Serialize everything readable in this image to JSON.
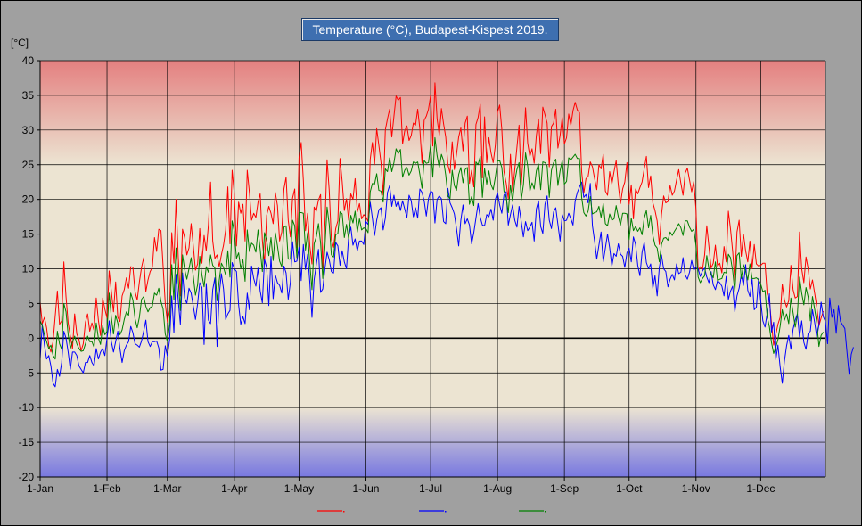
{
  "chart_data": {
    "type": "line",
    "title": "Temperature (°C), Budapest-Kispest 2019.",
    "ylabel": "[°C]",
    "xlabel": "",
    "ylim": [
      -20,
      40
    ],
    "y_ticks": [
      40,
      35,
      30,
      25,
      20,
      15,
      10,
      5,
      0,
      -5,
      -10,
      -15,
      -20
    ],
    "x_ticks": [
      {
        "label": "1-Jan",
        "day": 1
      },
      {
        "label": "1-Feb",
        "day": 32
      },
      {
        "label": "1-Mar",
        "day": 60
      },
      {
        "label": "1-Apr",
        "day": 91
      },
      {
        "label": "1-May",
        "day": 121
      },
      {
        "label": "1-Jun",
        "day": 152
      },
      {
        "label": "1-Jul",
        "day": 182
      },
      {
        "label": "1-Aug",
        "day": 213
      },
      {
        "label": "1-Sep",
        "day": 244
      },
      {
        "label": "1-Oct",
        "day": 274
      },
      {
        "label": "1-Nov",
        "day": 305
      },
      {
        "label": "1-Dec",
        "day": 335
      }
    ],
    "xlim_days": [
      1,
      365
    ],
    "grid": true,
    "background_bands": {
      "hot_above": 25,
      "cold_below": -10,
      "hot_color": "#e48080",
      "cold_color": "#7878e0",
      "neutral_color": "#ece4d2"
    },
    "legend": "bottom",
    "series": [
      {
        "color": "#ff0000",
        "values": [
          5.2,
          2.1,
          3.0,
          1.5,
          -1.0,
          -2.0,
          -0.5,
          3.2,
          6.8,
          2.0,
          2.5,
          11.0,
          6.0,
          2.2,
          0.3,
          -1.5,
          3.5,
          0.6,
          -0.2,
          -1.8,
          -0.8,
          2.3,
          3.5,
          1.0,
          2.2,
          1.1,
          5.8,
          2.6,
          0.4,
          5.8,
          4.2,
          2.9,
          9.7,
          6.8,
          3.8,
          8.1,
          3.0,
          2.4,
          6.1,
          7.0,
          8.7,
          7.2,
          10.3,
          10.2,
          6.7,
          5.5,
          8.1,
          10.2,
          11.6,
          6.7,
          8.4,
          9.6,
          10.2,
          14.5,
          12.5,
          15.7,
          15.5,
          10.4,
          5.0,
          2.3,
          4.0,
          15.2,
          10.8,
          20.0,
          11.8,
          6.1,
          15.7,
          14.5,
          12.0,
          13.0,
          16.5,
          13.3,
          9.8,
          10.7,
          15.8,
          10.8,
          14.8,
          12.6,
          16.3,
          22.5,
          14.0,
          11.5,
          12.0,
          10.3,
          12.0,
          13.4,
          15.6,
          21.8,
          13.6,
          24.2,
          20.8,
          13.3,
          19.6,
          18.0,
          19.3,
          14.0,
          24.2,
          21.0,
          17.0,
          18.0,
          17.4,
          19.6,
          20.8,
          14.1,
          10.7,
          17.7,
          19.0,
          18.0,
          16.5,
          21.0,
          19.1,
          14.0,
          15.3,
          21.5,
          23.2,
          17.0,
          14.6,
          20.2,
          21.5,
          13.0,
          26.0,
          28.2,
          22.8,
          15.5,
          18.0,
          13.3,
          10.7,
          18.9,
          18.3,
          19.9,
          20.7,
          10.0,
          16.4,
          25.7,
          21.3,
          14.2,
          13.1,
          15.8,
          16.9,
          25.9,
          22.6,
          18.4,
          20.1,
          17.0,
          20.8,
          20.0,
          23.0,
          18.2,
          19.4,
          17.2,
          17.8,
          17.5,
          16.8,
          25.8,
          28.2,
          25.0,
          30.2,
          27.8,
          25.3,
          20.6,
          30.0,
          31.6,
          33.0,
          29.0,
          32.0,
          34.9,
          34.3,
          34.7,
          28.0,
          29.9,
          30.6,
          28.5,
          29.2,
          31.0,
          30.7,
          33.0,
          30.2,
          25.2,
          31.4,
          32.0,
          33.0,
          35.0,
          27.7,
          36.8,
          31.6,
          29.3,
          33.1,
          30.9,
          29.0,
          25.0,
          23.8,
          28.3,
          24.3,
          26.5,
          29.0,
          30.3,
          27.0,
          31.0,
          32.0,
          22.3,
          24.2,
          21.8,
          30.8,
          31.8,
          33.7,
          23.1,
          31.9,
          25.3,
          28.9,
          26.7,
          25.3,
          27.8,
          32.6,
          33.6,
          30.1,
          24.0,
          22.4,
          20.1,
          26.5,
          21.2,
          24.3,
          27.5,
          30.7,
          22.0,
          27.0,
          33.2,
          28.1,
          26.2,
          27.3,
          25.2,
          29.2,
          31.6,
          26.6,
          33.3,
          32.2,
          31.0,
          24.7,
          30.5,
          31.0,
          33.0,
          27.4,
          29.2,
          31.8,
          28.0,
          28.9,
          32.3,
          30.7,
          32.8,
          34.0,
          32.9,
          32.5,
          24.0,
          20.9,
          23.0,
          23.3,
          25.4,
          24.7,
          23.0,
          21.4,
          25.0,
          24.4,
          26.5,
          21.2,
          20.6,
          24.0,
          22.2,
          24.0,
          25.6,
          22.0,
          19.4,
          21.5,
          22.5,
          25.3,
          19.3,
          22.1,
          17.2,
          21.5,
          20.8,
          21.7,
          22.5,
          24.4,
          26.2,
          21.7,
          23.4,
          19.5,
          18.4,
          16.9,
          13.5,
          17.8,
          20.5,
          19.5,
          19.7,
          22.0,
          20.6,
          21.2,
          22.8,
          24.3,
          22.3,
          20.6,
          23.8,
          24.5,
          22.8,
          21.1,
          22.6,
          18.5,
          9.7,
          10.3,
          9.9,
          12.0,
          16.2,
          13.2,
          10.1,
          10.8,
          13.4,
          10.4,
          10.8,
          9.4,
          13.2,
          11.0,
          18.3,
          15.7,
          12.5,
          8.2,
          15.3,
          17.0,
          11.8,
          15.0,
          12.6,
          11.0,
          14.0,
          10.0,
          13.5,
          10.7,
          10.4,
          10.5,
          10.8,
          10.8,
          6.4,
          5.5,
          2.2,
          -1.0,
          0.5,
          2.0,
          3.0,
          7.8,
          5.5,
          4.5,
          5.4,
          10.5,
          7.0,
          5.8,
          6.0,
          15.3,
          10.0,
          8.0,
          11.7,
          10.0,
          7.1,
          8.4,
          6.5,
          4.5,
          1.8,
          2.9,
          3.9
        ]
      },
      {
        "color": "#0000ff",
        "values": [
          -3.0,
          2.0,
          -1.0,
          -3.0,
          -2.5,
          -4.0,
          -6.5,
          -7.0,
          -4.5,
          -5.5,
          -3.5,
          1.0,
          0.0,
          -2.0,
          -4.5,
          -2.0,
          -2.0,
          -2.5,
          -4.0,
          -4.5,
          -5.0,
          -3.5,
          -3.5,
          -2.5,
          -3.5,
          -4.0,
          -1.5,
          -3.0,
          -2.0,
          -1.5,
          -2.5,
          0.0,
          2.5,
          -0.5,
          -2.0,
          -0.5,
          1.0,
          -1.5,
          -3.5,
          -1.8,
          -1.0,
          -0.5,
          1.7,
          0.8,
          -0.8,
          -1.0,
          -1.3,
          -0.4,
          1.0,
          2.6,
          -0.5,
          -1.2,
          -0.5,
          -0.5,
          -0.4,
          -1.4,
          -4.6,
          -4.5,
          -1.1,
          -2.6,
          -0.3,
          6.1,
          0.8,
          9.2,
          5.5,
          2.0,
          9.4,
          5.8,
          5.0,
          7.2,
          6.5,
          4.6,
          2.7,
          5.0,
          8.0,
          7.3,
          -0.9,
          7.9,
          2.6,
          2.1,
          7.0,
          8.7,
          -1.2,
          6.3,
          9.3,
          7.1,
          2.7,
          3.5,
          4.0,
          10.9,
          10.0,
          9.6,
          4.8,
          2.0,
          3.1,
          2.1,
          6.5,
          4.1,
          10.4,
          8.6,
          7.5,
          10.1,
          6.8,
          5.1,
          11.4,
          10.2,
          4.7,
          11.8,
          5.7,
          9.1,
          8.0,
          7.6,
          6.5,
          10.4,
          9.4,
          5.6,
          8.1,
          13.9,
          11.0,
          11.1,
          13.1,
          8.3,
          13.5,
          9.9,
          12.1,
          8.1,
          3.0,
          8.4,
          10.6,
          12.8,
          6.6,
          7.1,
          10.0,
          12.4,
          11.3,
          9.6,
          9.4,
          13.8,
          13.3,
          10.5,
          12.6,
          11.0,
          10.0,
          14.6,
          16.0,
          13.4,
          14.3,
          12.6,
          14.0,
          14.0,
          13.5,
          16.8,
          16.4,
          19.6,
          17.3,
          14.8,
          17.0,
          18.5,
          18.8,
          15.6,
          17.3,
          21.0,
          22.0,
          19.0,
          20.6,
          19.0,
          19.8,
          18.4,
          19.8,
          18.6,
          17.4,
          20.6,
          19.8,
          17.5,
          18.8,
          17.3,
          21.5,
          21.0,
          19.8,
          17.6,
          20.1,
          21.2,
          21.0,
          16.6,
          20.0,
          20.5,
          20.1,
          16.8,
          16.5,
          21.6,
          19.5,
          18.8,
          17.9,
          15.8,
          13.3,
          17.0,
          19.2,
          16.5,
          17.2,
          16.3,
          13.6,
          15.2,
          17.3,
          19.4,
          17.4,
          16.3,
          16.2,
          17.8,
          17.5,
          18.6,
          17.0,
          20.0,
          21.0,
          19.2,
          18.0,
          20.6,
          21.1,
          16.3,
          17.8,
          19.2,
          17.0,
          16.0,
          19.0,
          16.8,
          14.6,
          16.8,
          15.5,
          16.0,
          16.7,
          14.0,
          18.6,
          19.8,
          16.1,
          15.1,
          19.3,
          20.5,
          17.0,
          15.8,
          18.2,
          18.8,
          16.4,
          14.0,
          17.8,
          16.9,
          17.0,
          18.0,
          17.2,
          16.3,
          19.8,
          21.0,
          21.8,
          22.5,
          20.3,
          20.7,
          19.5,
          22.3,
          16.2,
          14.0,
          11.4,
          13.4,
          15.3,
          11.0,
          13.0,
          15.0,
          13.0,
          10.4,
          12.2,
          11.8,
          13.6,
          12.1,
          11.8,
          10.2,
          12.3,
          13.0,
          11.0,
          14.6,
          13.5,
          10.5,
          9.0,
          12.4,
          13.8,
          10.9,
          10.0,
          10.7,
          7.2,
          9.0,
          6.1,
          10.2,
          12.0,
          10.0,
          9.6,
          7.4,
          8.5,
          9.2,
          8.4,
          10.7,
          9.3,
          9.5,
          11.6,
          9.1,
          8.5,
          9.5,
          11.2,
          9.8,
          10.3,
          10.0,
          8.9,
          9.7,
          10.1,
          8.8,
          8.0,
          9.6,
          7.7,
          7.0,
          8.3,
          8.0,
          7.5,
          6.1,
          8.9,
          5.6,
          6.8,
          7.5,
          3.8,
          6.1,
          7.2,
          9.2,
          7.6,
          10.6,
          6.9,
          6.0,
          8.6,
          4.1,
          4.5,
          8.6,
          5.4,
          2.5,
          1.6,
          3.6,
          6.4,
          0.9,
          2.3,
          -3.1,
          -1.0,
          -4.1,
          -6.5,
          -3.3,
          -1.1,
          0.4,
          -1.6,
          1.3,
          2.6,
          3.5,
          0.2,
          2.5,
          -0.6,
          -1.6,
          0.7,
          1.0,
          4.1,
          2.3,
          0.1,
          1.9,
          5.2,
          3.1,
          2.4,
          -0.8,
          5.8,
          3.0,
          4.1,
          0.7,
          4.7,
          2.4,
          1.9,
          1.4,
          -2.0,
          -5.2,
          -2.3,
          -1.3
        ]
      },
      {
        "color": "#008000",
        "values": [
          2.5,
          1.8,
          0.5,
          -0.5,
          -1.5,
          -1.0,
          -2.5,
          -3.0,
          1.0,
          -0.8,
          -1.6,
          5.0,
          3.8,
          0.5,
          -1.5,
          -0.5,
          0.3,
          -0.8,
          -1.5,
          -1.9,
          -1.8,
          -0.8,
          0.3,
          -0.5,
          -0.5,
          -1.3,
          2.2,
          0.0,
          -0.9,
          1.8,
          0.5,
          1.0,
          6.5,
          3.0,
          0.6,
          3.3,
          2.2,
          0.5,
          1.2,
          2.7,
          3.8,
          3.3,
          6.5,
          5.5,
          2.8,
          1.5,
          3.0,
          5.6,
          6.0,
          4.6,
          3.8,
          4.4,
          4.6,
          6.5,
          6.2,
          7.2,
          5.3,
          4.2,
          0.6,
          -0.5,
          2.0,
          10.6,
          5.5,
          13.0,
          8.5,
          4.0,
          12.0,
          9.9,
          8.5,
          10.0,
          11.6,
          8.9,
          6.2,
          7.7,
          11.8,
          9.1,
          7.4,
          10.3,
          9.5,
          12.0,
          10.5,
          10.1,
          5.4,
          8.3,
          10.8,
          10.2,
          9.1,
          12.6,
          8.8,
          16.9,
          15.4,
          11.5,
          12.3,
          10.0,
          11.3,
          8.2,
          15.6,
          12.5,
          13.7,
          13.4,
          12.4,
          15.6,
          12.8,
          9.6,
          15.2,
          14.1,
          11.9,
          14.5,
          11.2,
          15.2,
          13.3,
          11.1,
          10.3,
          16.0,
          16.2,
          11.4,
          11.4,
          17.0,
          16.2,
          11.6,
          18.1,
          18.1,
          18.0,
          12.7,
          15.2,
          10.7,
          7.0,
          13.6,
          14.6,
          16.5,
          13.7,
          8.6,
          13.1,
          18.9,
          16.4,
          12.0,
          11.7,
          14.9,
          15.1,
          18.2,
          17.9,
          14.5,
          16.4,
          14.3,
          17.7,
          16.6,
          18.3,
          15.3,
          17.2,
          15.6,
          15.9,
          15.8,
          15.2,
          21.1,
          22.3,
          22.2,
          23.7,
          21.3,
          21.2,
          19.6,
          24.4,
          24.0,
          26.0,
          24.0,
          25.3,
          27.3,
          26.6,
          27.2,
          23.2,
          24.2,
          24.6,
          23.5,
          24.1,
          25.4,
          25.2,
          25.4,
          23.6,
          21.6,
          25.6,
          25.2,
          25.3,
          27.9,
          23.2,
          28.9,
          26.3,
          24.6,
          26.5,
          25.6,
          23.5,
          20.5,
          20.1,
          24.2,
          22.0,
          21.3,
          23.6,
          24.6,
          22.4,
          24.3,
          24.6,
          19.3,
          20.4,
          19.1,
          25.4,
          25.0,
          26.2,
          20.3,
          24.5,
          22.2,
          24.1,
          22.1,
          21.4,
          23.2,
          25.5,
          25.6,
          24.6,
          21.2,
          20.3,
          18.1,
          22.1,
          19.7,
          22.6,
          24.3,
          25.3,
          19.9,
          22.1,
          26.7,
          24.8,
          21.2,
          22.4,
          21.5,
          24.1,
          25.1,
          21.4,
          25.4,
          25.3,
          24.8,
          20.3,
          24.2,
          25.3,
          25.8,
          22.0,
          24.1,
          25.6,
          22.2,
          22.6,
          26.0,
          25.7,
          26.1,
          26.5,
          25.9,
          25.9,
          20.3,
          18.1,
          17.6,
          18.3,
          20.4,
          17.9,
          18.1,
          18.2,
          19.0,
          17.4,
          19.4,
          16.5,
          16.2,
          17.9,
          17.0,
          17.2,
          19.1,
          17.5,
          16.3,
          18.0,
          18.0,
          17.9,
          14.2,
          17.3,
          15.5,
          16.1,
          15.4,
          15.9,
          14.9,
          17.3,
          18.4,
          15.9,
          17.7,
          14.8,
          13.4,
          13.0,
          11.0,
          13.5,
          14.4,
          14.5,
          14.1,
          15.3,
          14.8,
          15.4,
          15.9,
          16.5,
          15.9,
          14.8,
          16.9,
          16.9,
          16.0,
          15.4,
          15.7,
          13.3,
          8.8,
          8.0,
          8.6,
          9.0,
          11.9,
          10.0,
          9.3,
          8.7,
          11.0,
          8.3,
          8.5,
          8.6,
          9.5,
          9.4,
          12.1,
          11.6,
          9.7,
          6.7,
          11.9,
          12.3,
          8.6,
          10.6,
          9.6,
          8.4,
          10.7,
          8.6,
          8.6,
          8.7,
          8.4,
          7.8,
          6.7,
          6.9,
          3.1,
          1.7,
          -0.6,
          -2.2,
          -1.3,
          -0.2,
          1.7,
          4.1,
          2.6,
          3.5,
          2.1,
          5.8,
          3.7,
          1.6,
          3.4,
          8.8,
          6.5,
          4.8,
          7.3,
          5.9,
          2.5,
          6.0,
          4.2,
          2.2,
          -1.2,
          0.4,
          0.9
        ]
      }
    ]
  }
}
